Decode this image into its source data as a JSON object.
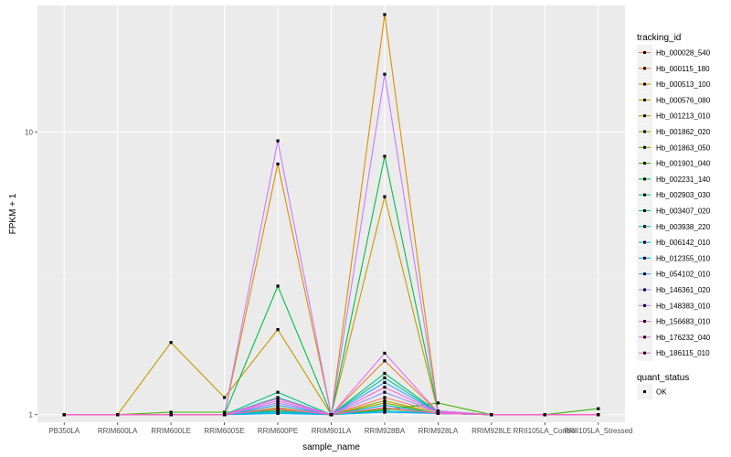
{
  "chart_data": {
    "type": "line",
    "title": "",
    "xlabel": "sample_name",
    "ylabel": "FPKM + 1",
    "y_scale": "log10",
    "ylim": [
      0.94,
      28
    ],
    "y_ticks": [
      {
        "value": 1,
        "label": "1"
      },
      {
        "value": 10,
        "label": "10"
      }
    ],
    "categories": [
      "PB350LA",
      "RRIM600LA",
      "RRIM600LE",
      "RRIM600SE",
      "RRIM600PE",
      "RRIM901LA",
      "RRIM928BA",
      "RRIM928LA",
      "RRIM928LE",
      "RRII105LA_Control",
      "RRII105LA_Stressed"
    ],
    "legend": {
      "color_title": "tracking_id",
      "shape_title": "quant_status",
      "shape_entries": [
        "OK"
      ],
      "position": "right"
    },
    "series": [
      {
        "name": "Hb_000028_540",
        "color": "#F8766D",
        "values": [
          1,
          1,
          1,
          1,
          1.05,
          1,
          1.15,
          1.02,
          1,
          1,
          1
        ]
      },
      {
        "name": "Hb_000115_180",
        "color": "#EB8335",
        "values": [
          1,
          1,
          1,
          1,
          1.1,
          1,
          1.55,
          1.02,
          1,
          1,
          1
        ]
      },
      {
        "name": "Hb_000513_100",
        "color": "#DA8F00",
        "values": [
          1,
          1,
          1,
          1,
          7.7,
          1,
          26,
          1.03,
          1,
          1,
          1
        ]
      },
      {
        "name": "Hb_000576_080",
        "color": "#C59900",
        "values": [
          1,
          1,
          1.8,
          1.15,
          2,
          1,
          5.9,
          1.02,
          1,
          1,
          1
        ]
      },
      {
        "name": "Hb_001213_010",
        "color": "#AEA200",
        "values": [
          1,
          1,
          1,
          1,
          1.04,
          1,
          1.12,
          1.01,
          1,
          1,
          1
        ]
      },
      {
        "name": "Hb_001862_020",
        "color": "#95A900",
        "values": [
          1,
          1,
          1,
          1,
          1.06,
          1,
          1.1,
          1.01,
          1,
          1,
          1
        ]
      },
      {
        "name": "Hb_001863_050",
        "color": "#72B000",
        "values": [
          1,
          1,
          1,
          1,
          1.02,
          1,
          1.05,
          1.01,
          1,
          1,
          1
        ]
      },
      {
        "name": "Hb_001901_040",
        "color": "#39B600",
        "values": [
          1,
          1,
          1.02,
          1.02,
          1.03,
          1,
          1.04,
          1.1,
          1,
          1,
          1.05
        ]
      },
      {
        "name": "Hb_002231_140",
        "color": "#00BB4E",
        "values": [
          1,
          1,
          1,
          1,
          2.85,
          1,
          8.2,
          1.03,
          1,
          1,
          1
        ]
      },
      {
        "name": "Hb_002903_030",
        "color": "#00BF7D",
        "values": [
          1,
          1,
          1,
          1,
          1.2,
          1,
          1.4,
          1.02,
          1,
          1,
          1
        ]
      },
      {
        "name": "Hb_003407_020",
        "color": "#00C1A3",
        "values": [
          1,
          1,
          1,
          1,
          1.15,
          1,
          1.35,
          1.02,
          1,
          1,
          1
        ]
      },
      {
        "name": "Hb_003938_220",
        "color": "#00BFC4",
        "values": [
          1,
          1,
          1,
          1,
          1.03,
          1,
          1.08,
          1.01,
          1,
          1,
          1
        ]
      },
      {
        "name": "Hb_006142_010",
        "color": "#00BAE0",
        "values": [
          1,
          1,
          1,
          1,
          1.02,
          1,
          1.03,
          1.01,
          1,
          1,
          1
        ]
      },
      {
        "name": "Hb_012355_010",
        "color": "#00B0F6",
        "values": [
          1,
          1,
          1,
          1,
          1.01,
          1,
          1.02,
          1.01,
          1,
          1,
          1
        ]
      },
      {
        "name": "Hb_054102_010",
        "color": "#35A2FF",
        "values": [
          1,
          1,
          1,
          1,
          1.08,
          1,
          1.3,
          1.02,
          1,
          1,
          1
        ]
      },
      {
        "name": "Hb_146361_020",
        "color": "#9590FF",
        "values": [
          1,
          1,
          1,
          1,
          1.1,
          1,
          1.2,
          1.02,
          1,
          1,
          1
        ]
      },
      {
        "name": "Hb_148383_010",
        "color": "#C77CFF",
        "values": [
          1,
          1,
          1,
          1,
          9.3,
          1,
          16,
          1.03,
          1,
          1,
          1
        ]
      },
      {
        "name": "Hb_156683_010",
        "color": "#E76BF3",
        "values": [
          1,
          1,
          1,
          1,
          1.12,
          1,
          1.65,
          1.02,
          1,
          1,
          1
        ]
      },
      {
        "name": "Hb_176232_040",
        "color": "#FA62DB",
        "values": [
          1,
          1,
          1,
          1,
          1.14,
          1,
          1.25,
          1.02,
          1,
          1,
          1
        ]
      },
      {
        "name": "Hb_186115_010",
        "color": "#FF62BC",
        "values": [
          1,
          1,
          1,
          1,
          1.05,
          1,
          1.06,
          1.01,
          1,
          1,
          1
        ]
      }
    ]
  }
}
